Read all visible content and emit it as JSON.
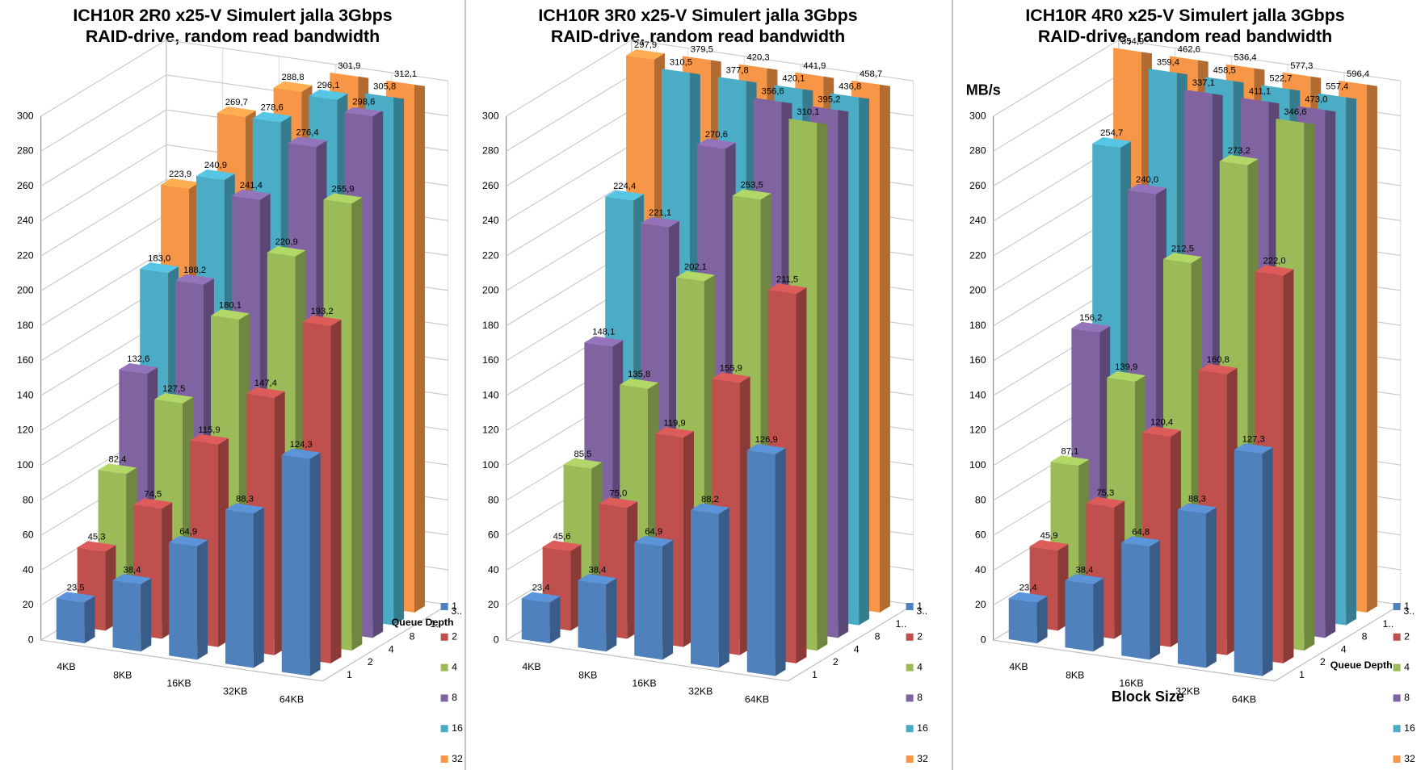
{
  "chart_data": [
    {
      "type": "bar3d",
      "title": "ICH10R 2R0 x25-V Simulert jalla 3Gbps",
      "subtitle": "RAID-drive, random read bandwidth",
      "z_axis_label": "Queue Depth",
      "categories": [
        "4KB",
        "8KB",
        "16KB",
        "32KB",
        "64KB"
      ],
      "depth_labels": [
        "1",
        "2",
        "4",
        "8",
        "1..",
        "3.."
      ],
      "ylim": [
        0,
        300
      ],
      "yticks": [
        0,
        20,
        40,
        60,
        80,
        100,
        120,
        140,
        160,
        180,
        200,
        220,
        240,
        260,
        280,
        300
      ],
      "grid": true,
      "series": [
        {
          "name": "1",
          "color": "#4f81bd",
          "values": [
            23.5,
            38.4,
            64.9,
            88.3,
            124.3
          ],
          "value_labels": [
            "23,5",
            "38,4",
            "64,9",
            "88,3",
            "124,3"
          ]
        },
        {
          "name": "2",
          "color": "#c0504d",
          "values": [
            45.3,
            74.5,
            115.9,
            147.4,
            193.2
          ],
          "value_labels": [
            "45,3",
            "74,5",
            "115,9",
            "147,4",
            "193,2"
          ]
        },
        {
          "name": "4",
          "color": "#9bbb59",
          "values": [
            82.4,
            127.5,
            180.1,
            220.9,
            255.9
          ],
          "value_labels": [
            "82,4",
            "127,5",
            "180,1",
            "220,9",
            "255,9"
          ]
        },
        {
          "name": "8",
          "color": "#8064a2",
          "values": [
            132.6,
            188.2,
            241.4,
            276.4,
            298.6
          ],
          "value_labels": [
            "132,6",
            "188,2",
            "241,4",
            "276,4",
            "298,6"
          ]
        },
        {
          "name": "16",
          "color": "#4bacc6",
          "values": [
            183.0,
            240.9,
            278.6,
            296.1,
            305.8
          ],
          "value_labels": [
            "183,0",
            "240,9",
            "278,6",
            "296,1",
            "305,8"
          ]
        },
        {
          "name": "32",
          "color": "#f79646",
          "values": [
            223.9,
            269.7,
            288.8,
            301.9,
            312.1
          ],
          "value_labels": [
            "223,9",
            "269,7",
            "288,8",
            "301,9",
            "312,1"
          ]
        }
      ]
    },
    {
      "type": "bar3d",
      "title": "ICH10R 3R0 x25-V Simulert jalla 3Gbps",
      "subtitle": "RAID-drive, random read bandwidth",
      "categories": [
        "4KB",
        "8KB",
        "16KB",
        "32KB",
        "64KB"
      ],
      "depth_labels": [
        "1",
        "2",
        "4",
        "8",
        "1..",
        "3.."
      ],
      "ylim": [
        0,
        300
      ],
      "yticks": [
        0,
        20,
        40,
        60,
        80,
        100,
        120,
        140,
        160,
        180,
        200,
        220,
        240,
        260,
        280,
        300
      ],
      "grid": true,
      "series": [
        {
          "name": "1",
          "color": "#4f81bd",
          "values": [
            23.4,
            38.4,
            64.9,
            88.2,
            126.9
          ],
          "value_labels": [
            "23,4",
            "38,4",
            "64,9",
            "88,2",
            "126,9"
          ]
        },
        {
          "name": "2",
          "color": "#c0504d",
          "values": [
            45.6,
            75.0,
            119.9,
            155.9,
            211.5
          ],
          "value_labels": [
            "45,6",
            "75,0",
            "119,9",
            "155,9",
            "211,5"
          ]
        },
        {
          "name": "4",
          "color": "#9bbb59",
          "values": [
            85.5,
            135.8,
            202.1,
            253.5,
            310.1
          ],
          "value_labels": [
            "85,5",
            "135,8",
            "202,1",
            "253,5",
            "310,1"
          ]
        },
        {
          "name": "8",
          "color": "#8064a2",
          "values": [
            148.1,
            221.1,
            270.6,
            356.6,
            395.2
          ],
          "value_labels": [
            "148,1",
            "221,1",
            "270,6",
            "356,6",
            "395,2"
          ]
        },
        {
          "name": "16",
          "color": "#4bacc6",
          "values": [
            224.4,
            310.5,
            377.8,
            420.1,
            436.8
          ],
          "value_labels": [
            "224,4",
            "310,5",
            "377,8",
            "420,1",
            "436,8"
          ]
        },
        {
          "name": "32",
          "color": "#f79646",
          "values": [
            297.9,
            379.5,
            420.3,
            441.9,
            458.7
          ],
          "value_labels": [
            "297,9",
            "379,5",
            "420,3",
            "441,9",
            "458,7"
          ]
        }
      ]
    },
    {
      "type": "bar3d",
      "title": "ICH10R 4R0 x25-V Simulert jalla 3Gbps",
      "subtitle": "RAID-drive, random read bandwidth",
      "y_axis_label": "MB/s",
      "x_axis_label": "Block Size",
      "z_axis_label": "Queue Depth",
      "categories": [
        "4KB",
        "8KB",
        "16KB",
        "32KB",
        "64KB"
      ],
      "depth_labels": [
        "1",
        "2",
        "4",
        "8",
        "1..",
        "3.."
      ],
      "ylim": [
        0,
        300
      ],
      "yticks": [
        0,
        20,
        40,
        60,
        80,
        100,
        120,
        140,
        160,
        180,
        200,
        220,
        240,
        260,
        280,
        300
      ],
      "grid": true,
      "series": [
        {
          "name": "1",
          "color": "#4f81bd",
          "values": [
            23.4,
            38.4,
            64.8,
            88.3,
            127.3
          ],
          "value_labels": [
            "23,4",
            "38,4",
            "64,8",
            "88,3",
            "127,3"
          ]
        },
        {
          "name": "2",
          "color": "#c0504d",
          "values": [
            45.9,
            75.3,
            120.4,
            160.8,
            222.0
          ],
          "value_labels": [
            "45,9",
            "75,3",
            "120,4",
            "160,8",
            "222,0"
          ]
        },
        {
          "name": "4",
          "color": "#9bbb59",
          "values": [
            87.1,
            139.9,
            212.5,
            273.2,
            346.6
          ],
          "value_labels": [
            "87,1",
            "139,9",
            "212,5",
            "273,2",
            "346,6"
          ]
        },
        {
          "name": "8",
          "color": "#8064a2",
          "values": [
            156.2,
            240.0,
            337.1,
            411.1,
            473.0
          ],
          "value_labels": [
            "156,2",
            "240,0",
            "337,1",
            "411,1",
            "473,0"
          ]
        },
        {
          "name": "16",
          "color": "#4bacc6",
          "values": [
            254.7,
            359.4,
            458.5,
            522.7,
            557.4
          ],
          "value_labels": [
            "254,7",
            "359,4",
            "458,5",
            "522,7",
            "557,4"
          ]
        },
        {
          "name": "32",
          "color": "#f79646",
          "values": [
            354.9,
            462.6,
            536.4,
            577.3,
            596.4
          ],
          "value_labels": [
            "354,9",
            "462,6",
            "536,4",
            "577,3",
            "596,4"
          ]
        }
      ]
    }
  ]
}
